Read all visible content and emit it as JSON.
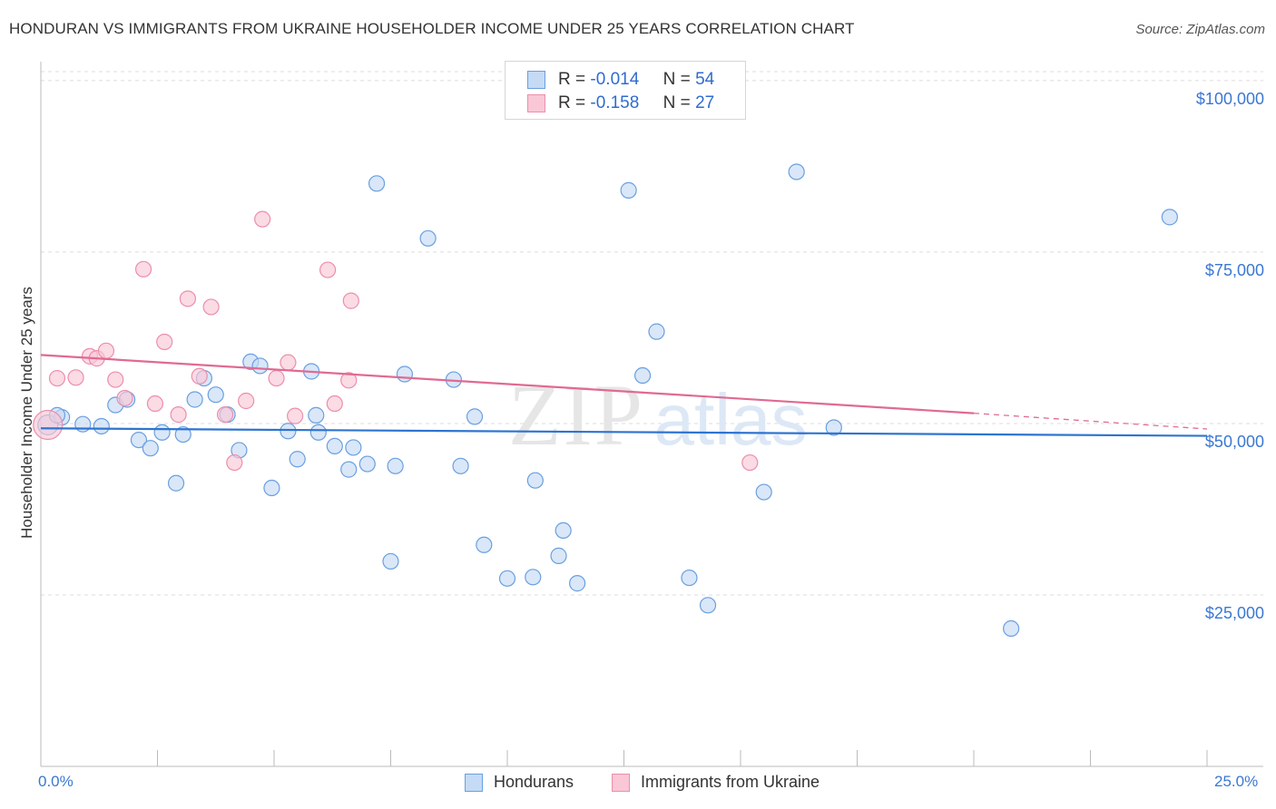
{
  "header": {
    "title": "HONDURAN VS IMMIGRANTS FROM UKRAINE HOUSEHOLDER INCOME UNDER 25 YEARS CORRELATION CHART",
    "source": "Source: ZipAtlas.com"
  },
  "watermark": {
    "zip": "ZIP",
    "atlas": "atlas"
  },
  "legend_top": {
    "rows": [
      {
        "r_label": "R =",
        "r_value": "-0.014",
        "n_label": "N =",
        "n_value": "54",
        "color": "#a9c8f2"
      },
      {
        "r_label": "R =",
        "r_value": "-0.158",
        "n_label": "N =",
        "n_value": "27",
        "color": "#f7b9cb"
      }
    ]
  },
  "legend_bottom": {
    "hondurans": "Hondurans",
    "ukraine": "Immigrants from Ukraine"
  },
  "chart_data": {
    "type": "scatter",
    "title": "HONDURAN VS IMMIGRANTS FROM UKRAINE HOUSEHOLDER INCOME UNDER 25 YEARS CORRELATION CHART",
    "xlabel": "",
    "ylabel": "Householder Income Under 25 years",
    "xlim": [
      0,
      25
    ],
    "ylim": [
      0,
      102500
    ],
    "x_tick_labels": [
      "0.0%",
      "25.0%"
    ],
    "y_ticks": [
      {
        "value": 25000,
        "label": "$25,000"
      },
      {
        "value": 50000,
        "label": "$50,000"
      },
      {
        "value": 75000,
        "label": "$75,000"
      },
      {
        "value": 100000,
        "label": "$100,000"
      }
    ],
    "grid": "horizontal dashed",
    "legend_position": "top-center",
    "series": [
      {
        "name": "Hondurans",
        "color": "#6a9fe0",
        "fill": "#c5daf5",
        "points": [
          [
            0.15,
            49800
          ],
          [
            0.45,
            50900
          ],
          [
            0.9,
            49900
          ],
          [
            1.3,
            49600
          ],
          [
            1.6,
            52700
          ],
          [
            1.85,
            53500
          ],
          [
            2.1,
            47600
          ],
          [
            2.35,
            46400
          ],
          [
            2.6,
            48700
          ],
          [
            2.9,
            41300
          ],
          [
            3.05,
            48400
          ],
          [
            3.3,
            53500
          ],
          [
            3.5,
            56600
          ],
          [
            3.75,
            54200
          ],
          [
            4.0,
            51300
          ],
          [
            4.25,
            46100
          ],
          [
            4.5,
            59000
          ],
          [
            4.7,
            58400
          ],
          [
            4.95,
            40600
          ],
          [
            5.3,
            48900
          ],
          [
            5.5,
            44800
          ],
          [
            5.8,
            57600
          ],
          [
            5.9,
            51200
          ],
          [
            6.3,
            46700
          ],
          [
            6.6,
            43300
          ],
          [
            6.7,
            46500
          ],
          [
            7.0,
            44100
          ],
          [
            7.2,
            85000
          ],
          [
            7.5,
            29900
          ],
          [
            7.6,
            43800
          ],
          [
            7.8,
            57200
          ],
          [
            8.3,
            77000
          ],
          [
            8.85,
            56400
          ],
          [
            9.0,
            43800
          ],
          [
            9.3,
            51000
          ],
          [
            9.5,
            32300
          ],
          [
            10.0,
            27400
          ],
          [
            10.6,
            41700
          ],
          [
            10.55,
            27600
          ],
          [
            11.1,
            30700
          ],
          [
            11.2,
            34400
          ],
          [
            11.5,
            26700
          ],
          [
            12.6,
            84000
          ],
          [
            12.9,
            57000
          ],
          [
            13.2,
            63400
          ],
          [
            13.9,
            27500
          ],
          [
            14.3,
            23500
          ],
          [
            15.5,
            40000
          ],
          [
            16.2,
            86700
          ],
          [
            17.0,
            49400
          ],
          [
            20.8,
            20100
          ],
          [
            24.2,
            80100
          ],
          [
            0.35,
            51200
          ],
          [
            5.95,
            48700
          ]
        ]
      },
      {
        "name": "Immigrants from Ukraine",
        "color": "#ec8ead",
        "fill": "#f9c7d6",
        "points": [
          [
            0.15,
            49800
          ],
          [
            0.35,
            56600
          ],
          [
            0.75,
            56700
          ],
          [
            1.05,
            59800
          ],
          [
            1.2,
            59500
          ],
          [
            1.4,
            60600
          ],
          [
            1.6,
            56400
          ],
          [
            1.8,
            53700
          ],
          [
            2.2,
            72500
          ],
          [
            2.45,
            52900
          ],
          [
            2.65,
            61900
          ],
          [
            2.95,
            51300
          ],
          [
            3.15,
            68200
          ],
          [
            3.4,
            56900
          ],
          [
            3.65,
            67000
          ],
          [
            3.95,
            51300
          ],
          [
            4.15,
            44300
          ],
          [
            4.4,
            53300
          ],
          [
            4.75,
            79800
          ],
          [
            5.05,
            56600
          ],
          [
            5.3,
            58900
          ],
          [
            5.45,
            51100
          ],
          [
            6.15,
            72400
          ],
          [
            6.3,
            52900
          ],
          [
            6.6,
            56300
          ],
          [
            6.65,
            67900
          ],
          [
            15.2,
            44300
          ]
        ]
      }
    ],
    "trend_lines": [
      {
        "series": "Hondurans",
        "x": [
          0,
          25
        ],
        "y": [
          49300,
          48200
        ]
      },
      {
        "series": "Immigrants from Ukraine",
        "x": [
          0,
          20.0
        ],
        "y": [
          60000,
          51500
        ],
        "dashed_to": [
          25,
          49200
        ]
      }
    ]
  }
}
